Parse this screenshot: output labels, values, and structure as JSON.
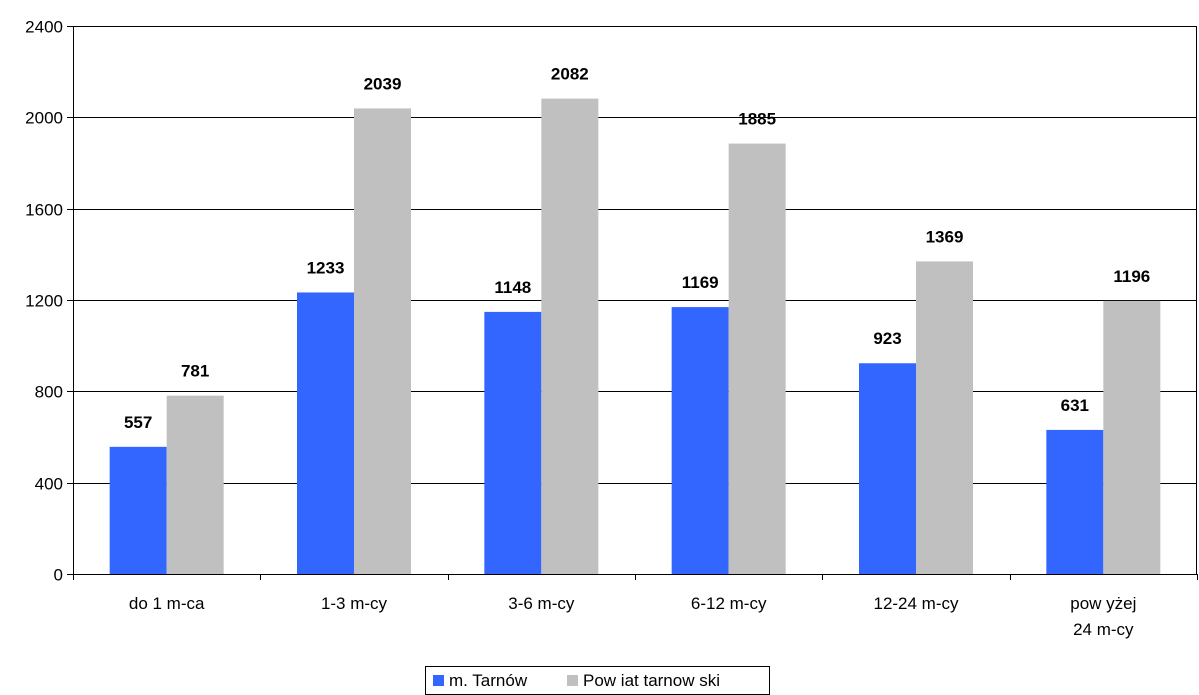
{
  "chart_data": {
    "type": "bar",
    "categories": [
      [
        "do 1 m-ca"
      ],
      [
        "1-3 m-cy"
      ],
      [
        "3-6 m-cy"
      ],
      [
        "6-12 m-cy"
      ],
      [
        "12-24 m-cy"
      ],
      [
        "pow yżej",
        "24 m-cy"
      ]
    ],
    "series": [
      {
        "name": "m. Tarnów",
        "color": "#3366ff",
        "values": [
          557,
          1233,
          1148,
          1169,
          923,
          631
        ]
      },
      {
        "name": "Pow iat tarnow ski",
        "color": "#c0c0c0",
        "values": [
          781,
          2039,
          2082,
          1885,
          1369,
          1196
        ]
      }
    ],
    "ylim": [
      0,
      2400
    ],
    "yticks": [
      0,
      400,
      800,
      1200,
      1600,
      2000,
      2400
    ],
    "grid": true,
    "legend_position": "bottom"
  }
}
